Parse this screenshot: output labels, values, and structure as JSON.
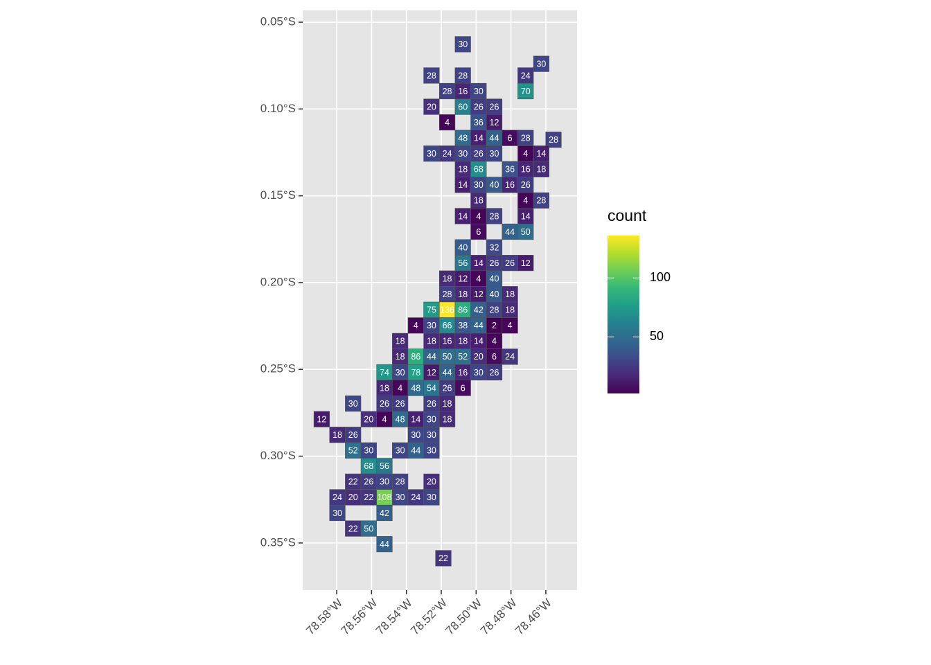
{
  "chart_data": {
    "type": "grid-map",
    "legend_title": "count",
    "xlim": [
      -78.5995,
      -78.4421
    ],
    "ylim": [
      -0.3772,
      -0.0432
    ],
    "xticks": [
      {
        "value": -78.58,
        "label": "78.58°W"
      },
      {
        "value": -78.56,
        "label": "78.56°W"
      },
      {
        "value": -78.54,
        "label": "78.54°W"
      },
      {
        "value": -78.52,
        "label": "78.52°W"
      },
      {
        "value": -78.5,
        "label": "78.50°W"
      },
      {
        "value": -78.48,
        "label": "78.48°W"
      },
      {
        "value": -78.46,
        "label": "78.46°W"
      }
    ],
    "yticks": [
      {
        "value": -0.05,
        "label": "0.05°S"
      },
      {
        "value": -0.1,
        "label": "0.10°S"
      },
      {
        "value": -0.15,
        "label": "0.15°S"
      },
      {
        "value": -0.2,
        "label": "0.20°S"
      },
      {
        "value": -0.25,
        "label": "0.25°S"
      },
      {
        "value": -0.3,
        "label": "0.30°S"
      },
      {
        "value": -0.35,
        "label": "0.35°S"
      }
    ],
    "colorlim": [
      2,
      136
    ],
    "colorticks": [
      50,
      100
    ],
    "palette": [
      "#440154",
      "#482878",
      "#3e4a89",
      "#31688e",
      "#26828e",
      "#1f9e89",
      "#35b779",
      "#6ece58",
      "#b5de2b",
      "#fde725"
    ],
    "rows": [
      {
        "lat": -0.0627,
        "lon": [
          -78.5076
        ],
        "values": [
          30
        ]
      },
      {
        "lat": -0.074,
        "lon": [
          -78.4626
        ],
        "values": [
          30
        ]
      },
      {
        "lat": -0.0807,
        "lon": [
          -78.5256,
          -78.5076,
          -78.4716
        ],
        "values": [
          28,
          28,
          24
        ]
      },
      {
        "lat": -0.0897,
        "lon": [
          -78.5166,
          -78.5076,
          -78.4986,
          -78.4716
        ],
        "values": [
          28,
          16,
          30,
          70
        ]
      },
      {
        "lat": -0.0987,
        "lon": [
          -78.5256,
          -78.5076,
          -78.4986,
          -78.4896
        ],
        "values": [
          20,
          60,
          26,
          26
        ]
      },
      {
        "lat": -0.1077,
        "lon": [
          -78.5166,
          -78.4986,
          -78.4896
        ],
        "values": [
          4,
          36,
          12
        ]
      },
      {
        "lat": -0.1167,
        "lon": [
          -78.5076,
          -78.4986,
          -78.4896,
          -78.4806,
          -78.4716
        ],
        "values": [
          48,
          14,
          44,
          6,
          28
        ]
      },
      {
        "lat": -0.1177,
        "lon": [
          -78.4556
        ],
        "values": [
          28
        ]
      },
      {
        "lat": -0.1257,
        "lon": [
          -78.5256,
          -78.5166,
          -78.5076,
          -78.4986,
          -78.4896,
          -78.4716,
          -78.4626
        ],
        "values": [
          30,
          24,
          30,
          26,
          30,
          4,
          14
        ]
      },
      {
        "lat": -0.1347,
        "lon": [
          -78.5076,
          -78.4986,
          -78.4806,
          -78.4716,
          -78.4626
        ],
        "values": [
          18,
          68,
          36,
          16,
          18
        ]
      },
      {
        "lat": -0.1437,
        "lon": [
          -78.5076,
          -78.4986,
          -78.4896,
          -78.4806,
          -78.4716
        ],
        "values": [
          14,
          30,
          40,
          16,
          26
        ]
      },
      {
        "lat": -0.1527,
        "lon": [
          -78.4986,
          -78.4716,
          -78.4626
        ],
        "values": [
          18,
          4,
          28
        ]
      },
      {
        "lat": -0.1617,
        "lon": [
          -78.5076,
          -78.4986,
          -78.4896,
          -78.4716
        ],
        "values": [
          14,
          4,
          28,
          14
        ]
      },
      {
        "lat": -0.1707,
        "lon": [
          -78.4986,
          -78.4806,
          -78.4716
        ],
        "values": [
          6,
          44,
          50
        ]
      },
      {
        "lat": -0.1797,
        "lon": [
          -78.5076,
          -78.4896
        ],
        "values": [
          40,
          32
        ]
      },
      {
        "lat": -0.1887,
        "lon": [
          -78.5076,
          -78.4986,
          -78.4896,
          -78.4806,
          -78.4716
        ],
        "values": [
          56,
          14,
          26,
          26,
          12
        ]
      },
      {
        "lat": -0.1977,
        "lon": [
          -78.5166,
          -78.5076,
          -78.4986,
          -78.4896
        ],
        "values": [
          18,
          12,
          4,
          40
        ]
      },
      {
        "lat": -0.2067,
        "lon": [
          -78.5166,
          -78.5076,
          -78.4986,
          -78.4896,
          -78.4806
        ],
        "values": [
          28,
          18,
          12,
          40,
          18
        ]
      },
      {
        "lat": -0.2157,
        "lon": [
          -78.5256,
          -78.5166,
          -78.5076,
          -78.4986,
          -78.4896,
          -78.4806
        ],
        "values": [
          75,
          136,
          86,
          42,
          28,
          18
        ]
      },
      {
        "lat": -0.2247,
        "lon": [
          -78.5346,
          -78.5256,
          -78.5166,
          -78.5076,
          -78.4986,
          -78.4896,
          -78.4806
        ],
        "values": [
          4,
          30,
          66,
          38,
          44,
          2,
          4
        ]
      },
      {
        "lat": -0.2337,
        "lon": [
          -78.5436,
          -78.5256,
          -78.5166,
          -78.5076,
          -78.4986,
          -78.4896
        ],
        "values": [
          18,
          18,
          16,
          18,
          14,
          4
        ]
      },
      {
        "lat": -0.2427,
        "lon": [
          -78.5436,
          -78.5346,
          -78.5256,
          -78.5166,
          -78.5076,
          -78.4986,
          -78.4896,
          -78.4806
        ],
        "values": [
          18,
          86,
          44,
          50,
          52,
          20,
          6,
          24
        ]
      },
      {
        "lat": -0.2517,
        "lon": [
          -78.5526,
          -78.5436,
          -78.5346,
          -78.5256,
          -78.5166,
          -78.5076,
          -78.4986,
          -78.4896
        ],
        "values": [
          74,
          30,
          78,
          12,
          44,
          16,
          30,
          26
        ]
      },
      {
        "lat": -0.2607,
        "lon": [
          -78.5526,
          -78.5436,
          -78.5346,
          -78.5256,
          -78.5166,
          -78.5076
        ],
        "values": [
          18,
          4,
          48,
          54,
          26,
          6
        ]
      },
      {
        "lat": -0.2697,
        "lon": [
          -78.5706,
          -78.5526,
          -78.5436,
          -78.5256,
          -78.5166
        ],
        "values": [
          30,
          26,
          26,
          26,
          18
        ]
      },
      {
        "lat": -0.2787,
        "lon": [
          -78.5886,
          -78.5616,
          -78.5526,
          -78.5436,
          -78.5346,
          -78.5256,
          -78.5166
        ],
        "values": [
          12,
          20,
          4,
          48,
          14,
          30,
          18
        ]
      },
      {
        "lat": -0.2877,
        "lon": [
          -78.5796,
          -78.5706,
          -78.5346,
          -78.5256
        ],
        "values": [
          18,
          26,
          30,
          30
        ]
      },
      {
        "lat": -0.2967,
        "lon": [
          -78.5706,
          -78.5616,
          -78.5436,
          -78.5346,
          -78.5256
        ],
        "values": [
          52,
          30,
          30,
          44,
          30
        ]
      },
      {
        "lat": -0.3057,
        "lon": [
          -78.5616,
          -78.5526
        ],
        "values": [
          68,
          56
        ]
      },
      {
        "lat": -0.3147,
        "lon": [
          -78.5706,
          -78.5616,
          -78.5526,
          -78.5436,
          -78.5256
        ],
        "values": [
          22,
          26,
          30,
          28,
          20
        ]
      },
      {
        "lat": -0.3237,
        "lon": [
          -78.5796,
          -78.5706,
          -78.5616,
          -78.5526,
          -78.5436,
          -78.5346,
          -78.5256
        ],
        "values": [
          24,
          20,
          22,
          108,
          30,
          24,
          30
        ]
      },
      {
        "lat": -0.3327,
        "lon": [
          -78.5796,
          -78.5526
        ],
        "values": [
          30,
          42
        ]
      },
      {
        "lat": -0.3417,
        "lon": [
          -78.5706,
          -78.5616
        ],
        "values": [
          22,
          50
        ]
      },
      {
        "lat": -0.3507,
        "lon": [
          -78.5526
        ],
        "values": [
          44
        ]
      },
      {
        "lat": -0.3588,
        "lon": [
          -78.5188
        ],
        "values": [
          22
        ]
      }
    ]
  }
}
